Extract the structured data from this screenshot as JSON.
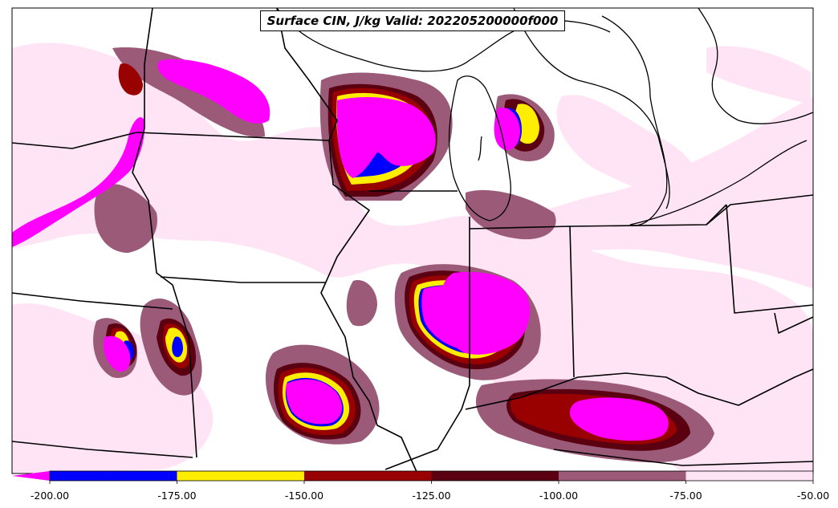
{
  "title": "Surface CIN, J/kg Valid: 202205200000f000",
  "colorbar": {
    "extend_color": "#ff00ff",
    "bins": [
      {
        "from": -200,
        "to": -175,
        "color": "#0000ff"
      },
      {
        "from": -175,
        "to": -150,
        "color": "#ffee00"
      },
      {
        "from": -150,
        "to": -125,
        "color": "#990000"
      },
      {
        "from": -125,
        "to": -100,
        "color": "#5a0010"
      },
      {
        "from": -100,
        "to": -75,
        "color": "#9a5a78"
      },
      {
        "from": -75,
        "to": -50,
        "color": "#ffe4f6"
      }
    ],
    "tick_labels": [
      "-200.00",
      "-175.00",
      "-150.00",
      "-125.00",
      "-100.00",
      "-75.00",
      "-50.00"
    ]
  }
}
